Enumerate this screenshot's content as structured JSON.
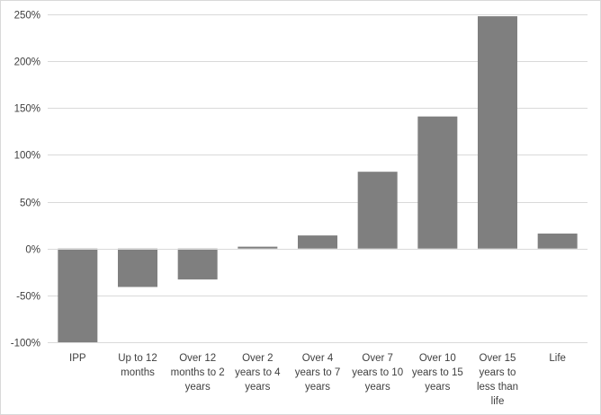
{
  "chart_data": {
    "type": "bar",
    "title": "",
    "xlabel": "",
    "ylabel": "",
    "categories": [
      [
        "IPP"
      ],
      [
        "Up to 12",
        "months"
      ],
      [
        "Over 12",
        "months to 2",
        "years"
      ],
      [
        "Over 2",
        "years to 4",
        "years"
      ],
      [
        "Over 4",
        "years to 7",
        "years"
      ],
      [
        "Over 7",
        "years to 10",
        "years"
      ],
      [
        "Over 10",
        "years to 15",
        "years"
      ],
      [
        "Over 15",
        "years to",
        "less than",
        "life"
      ],
      [
        "Life"
      ]
    ],
    "values": [
      -100,
      -41,
      -33,
      2,
      14,
      82,
      141,
      248,
      16
    ],
    "ylim": [
      -100,
      250
    ],
    "yticks": [
      -100,
      -50,
      0,
      50,
      100,
      150,
      200,
      250
    ],
    "ytick_labels": [
      "-100%",
      "-50%",
      "0%",
      "50%",
      "100%",
      "150%",
      "200%",
      "250%"
    ],
    "bar_color": "#7f7f7f",
    "grid_color": "#d9d9d9",
    "grid": true,
    "legend": "none"
  }
}
